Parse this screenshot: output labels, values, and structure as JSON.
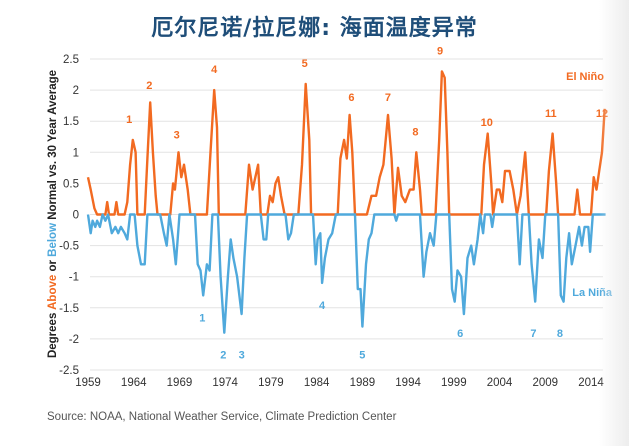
{
  "title": "厄尔尼诺/拉尼娜: 海面温度异常",
  "source": "Source: NOAA, National Weather Service, Climate Prediction Center",
  "colors": {
    "el_nino": "#f26a21",
    "la_nina": "#4fa9dc",
    "title": "#1f4e79",
    "grid": "#e3e3e3"
  },
  "chart_data": {
    "type": "line",
    "title": "厄尔尼诺/拉尼娜: 海面温度异常",
    "xlabel": "",
    "ylabel_parts": [
      {
        "text": "Degrees ",
        "color": "#222222"
      },
      {
        "text": "Above",
        "color": "#f26a21"
      },
      {
        "text": " or ",
        "color": "#222222"
      },
      {
        "text": "Below",
        "color": "#4fa9dc"
      },
      {
        "text": " Normal vs. 30 Year Average",
        "color": "#222222"
      }
    ],
    "xlim": [
      1959,
      2015.6
    ],
    "ylim": [
      -2.5,
      2.5
    ],
    "x_ticks": [
      "1959",
      "1964",
      "1969",
      "1974",
      "1979",
      "1984",
      "1989",
      "1994",
      "1999",
      "2004",
      "2009",
      "2014"
    ],
    "y_ticks": [
      "2.5",
      "2",
      "1.5",
      "1",
      "0.5",
      "0",
      "-0.5",
      "-1",
      "-1.5",
      "-2",
      "-2.5"
    ],
    "grid": true,
    "series": [
      {
        "name": "El Niño",
        "label_position": "top-right",
        "points": [
          [
            1959.0,
            0.6
          ],
          [
            1959.3,
            0.4
          ],
          [
            1959.7,
            0.1
          ],
          [
            1960.0,
            0.0
          ],
          [
            1960.9,
            0.0
          ],
          [
            1961.1,
            0.2
          ],
          [
            1961.3,
            0.0
          ],
          [
            1961.9,
            0.0
          ],
          [
            1962.1,
            0.2
          ],
          [
            1962.3,
            0.0
          ],
          [
            1963.0,
            0.0
          ],
          [
            1963.3,
            0.2
          ],
          [
            1963.6,
            0.8
          ],
          [
            1963.9,
            1.2
          ],
          [
            1964.2,
            1.0
          ],
          [
            1964.4,
            0.0
          ],
          [
            1965.2,
            0.0
          ],
          [
            1965.5,
            0.9
          ],
          [
            1965.8,
            1.8
          ],
          [
            1966.1,
            1.0
          ],
          [
            1966.4,
            0.3
          ],
          [
            1966.6,
            0.0
          ],
          [
            1968.0,
            0.0
          ],
          [
            1968.3,
            0.5
          ],
          [
            1968.5,
            0.4
          ],
          [
            1968.9,
            1.0
          ],
          [
            1969.2,
            0.6
          ],
          [
            1969.5,
            0.8
          ],
          [
            1969.9,
            0.4
          ],
          [
            1970.2,
            0.0
          ],
          [
            1972.0,
            0.0
          ],
          [
            1972.4,
            1.0
          ],
          [
            1972.8,
            2.0
          ],
          [
            1973.1,
            1.4
          ],
          [
            1973.3,
            0.0
          ],
          [
            1976.2,
            0.0
          ],
          [
            1976.6,
            0.8
          ],
          [
            1977.0,
            0.4
          ],
          [
            1977.6,
            0.8
          ],
          [
            1977.9,
            0.0
          ],
          [
            1978.6,
            0.0
          ],
          [
            1978.9,
            0.3
          ],
          [
            1979.2,
            0.2
          ],
          [
            1979.5,
            0.5
          ],
          [
            1979.8,
            0.6
          ],
          [
            1980.1,
            0.3
          ],
          [
            1980.5,
            0.0
          ],
          [
            1982.0,
            0.0
          ],
          [
            1982.4,
            0.8
          ],
          [
            1982.8,
            2.1
          ],
          [
            1983.2,
            1.2
          ],
          [
            1983.4,
            0.0
          ],
          [
            1986.3,
            0.0
          ],
          [
            1986.6,
            0.9
          ],
          [
            1987.0,
            1.2
          ],
          [
            1987.3,
            0.9
          ],
          [
            1987.6,
            1.6
          ],
          [
            1987.9,
            1.0
          ],
          [
            1988.2,
            0.0
          ],
          [
            1989.5,
            0.0
          ],
          [
            1990.0,
            0.3
          ],
          [
            1990.5,
            0.3
          ],
          [
            1990.9,
            0.6
          ],
          [
            1991.3,
            0.8
          ],
          [
            1991.8,
            1.6
          ],
          [
            1992.2,
            0.9
          ],
          [
            1992.5,
            0.0
          ],
          [
            1992.9,
            0.75
          ],
          [
            1993.3,
            0.3
          ],
          [
            1993.7,
            0.2
          ],
          [
            1994.2,
            0.4
          ],
          [
            1994.6,
            0.4
          ],
          [
            1994.9,
            1.0
          ],
          [
            1995.3,
            0.4
          ],
          [
            1995.5,
            0.0
          ],
          [
            1997.0,
            0.0
          ],
          [
            1997.4,
            1.2
          ],
          [
            1997.7,
            2.3
          ],
          [
            1998.0,
            2.2
          ],
          [
            1998.3,
            1.0
          ],
          [
            1998.5,
            0.0
          ],
          [
            2002.0,
            0.0
          ],
          [
            2002.3,
            0.8
          ],
          [
            2002.7,
            1.3
          ],
          [
            2003.1,
            0.5
          ],
          [
            2003.3,
            0.0
          ],
          [
            2003.7,
            0.4
          ],
          [
            2004.0,
            0.4
          ],
          [
            2004.3,
            0.2
          ],
          [
            2004.6,
            0.7
          ],
          [
            2005.1,
            0.7
          ],
          [
            2005.5,
            0.4
          ],
          [
            2005.9,
            0.0
          ],
          [
            2006.3,
            0.3
          ],
          [
            2006.8,
            1.0
          ],
          [
            2007.2,
            0.0
          ],
          [
            2009.1,
            0.0
          ],
          [
            2009.4,
            0.7
          ],
          [
            2009.8,
            1.3
          ],
          [
            2010.2,
            0.5
          ],
          [
            2010.4,
            0.0
          ],
          [
            2012.2,
            0.0
          ],
          [
            2012.5,
            0.4
          ],
          [
            2012.8,
            0.0
          ],
          [
            2014.0,
            0.0
          ],
          [
            2014.3,
            0.6
          ],
          [
            2014.6,
            0.4
          ],
          [
            2014.9,
            0.7
          ],
          [
            2015.2,
            1.0
          ],
          [
            2015.5,
            1.7
          ]
        ]
      },
      {
        "name": "La Niña",
        "label_position": "right",
        "points": [
          [
            1959.0,
            0.0
          ],
          [
            1959.3,
            -0.3
          ],
          [
            1959.5,
            -0.1
          ],
          [
            1959.8,
            -0.2
          ],
          [
            1960.0,
            -0.1
          ],
          [
            1960.3,
            -0.2
          ],
          [
            1960.6,
            0.0
          ],
          [
            1960.9,
            -0.1
          ],
          [
            1961.2,
            0.0
          ],
          [
            1961.6,
            -0.3
          ],
          [
            1962.0,
            -0.2
          ],
          [
            1962.3,
            -0.3
          ],
          [
            1962.6,
            -0.2
          ],
          [
            1963.0,
            -0.3
          ],
          [
            1963.3,
            -0.4
          ],
          [
            1963.6,
            0.0
          ],
          [
            1964.1,
            0.0
          ],
          [
            1964.4,
            -0.5
          ],
          [
            1964.8,
            -0.8
          ],
          [
            1965.2,
            -0.8
          ],
          [
            1965.5,
            0.0
          ],
          [
            1966.9,
            0.0
          ],
          [
            1967.3,
            -0.3
          ],
          [
            1967.6,
            -0.5
          ],
          [
            1967.9,
            0.0
          ],
          [
            1968.3,
            -0.4
          ],
          [
            1968.6,
            -0.8
          ],
          [
            1969.0,
            0.0
          ],
          [
            1970.7,
            0.0
          ],
          [
            1971.0,
            -0.8
          ],
          [
            1971.3,
            -0.9
          ],
          [
            1971.6,
            -1.3
          ],
          [
            1972.0,
            -0.8
          ],
          [
            1972.3,
            -0.9
          ],
          [
            1972.6,
            0.0
          ],
          [
            1973.2,
            0.0
          ],
          [
            1973.5,
            -1.0
          ],
          [
            1973.9,
            -1.9
          ],
          [
            1974.3,
            -1.0
          ],
          [
            1974.6,
            -0.4
          ],
          [
            1974.9,
            -0.7
          ],
          [
            1975.3,
            -1.0
          ],
          [
            1975.8,
            -1.6
          ],
          [
            1976.1,
            -0.7
          ],
          [
            1976.4,
            0.0
          ],
          [
            1977.9,
            0.0
          ],
          [
            1978.2,
            -0.4
          ],
          [
            1978.5,
            -0.4
          ],
          [
            1978.7,
            0.0
          ],
          [
            1980.6,
            0.0
          ],
          [
            1980.9,
            -0.4
          ],
          [
            1981.2,
            -0.3
          ],
          [
            1981.5,
            0.0
          ],
          [
            1983.6,
            0.0
          ],
          [
            1983.9,
            -0.8
          ],
          [
            1984.1,
            -0.4
          ],
          [
            1984.4,
            -0.3
          ],
          [
            1984.6,
            -1.1
          ],
          [
            1984.9,
            -0.7
          ],
          [
            1985.3,
            -0.4
          ],
          [
            1985.7,
            -0.3
          ],
          [
            1986.1,
            0.0
          ],
          [
            1988.2,
            0.0
          ],
          [
            1988.5,
            -1.2
          ],
          [
            1988.8,
            -1.2
          ],
          [
            1989.0,
            -1.8
          ],
          [
            1989.4,
            -0.8
          ],
          [
            1989.7,
            -0.4
          ],
          [
            1990.0,
            -0.3
          ],
          [
            1990.3,
            0.0
          ],
          [
            1992.5,
            0.0
          ],
          [
            1992.7,
            -0.1
          ],
          [
            1992.9,
            0.0
          ],
          [
            1995.3,
            0.0
          ],
          [
            1995.7,
            -1.0
          ],
          [
            1996.0,
            -0.6
          ],
          [
            1996.4,
            -0.3
          ],
          [
            1996.8,
            -0.5
          ],
          [
            1997.1,
            0.0
          ],
          [
            1998.5,
            0.0
          ],
          [
            1998.8,
            -1.2
          ],
          [
            1999.1,
            -1.4
          ],
          [
            1999.4,
            -0.9
          ],
          [
            1999.8,
            -1.0
          ],
          [
            2000.1,
            -1.6
          ],
          [
            2000.5,
            -0.7
          ],
          [
            2000.9,
            -0.5
          ],
          [
            2001.2,
            -0.8
          ],
          [
            2001.6,
            -0.4
          ],
          [
            2001.9,
            0.0
          ],
          [
            2002.2,
            -0.3
          ],
          [
            2002.4,
            0.0
          ],
          [
            2003.0,
            0.0
          ],
          [
            2003.2,
            -0.2
          ],
          [
            2003.4,
            0.0
          ],
          [
            2005.9,
            0.0
          ],
          [
            2006.2,
            -0.8
          ],
          [
            2006.5,
            0.0
          ],
          [
            2007.2,
            0.0
          ],
          [
            2007.5,
            -0.8
          ],
          [
            2007.9,
            -1.4
          ],
          [
            2008.3,
            -0.4
          ],
          [
            2008.7,
            -0.7
          ],
          [
            2009.0,
            0.0
          ],
          [
            2010.4,
            0.0
          ],
          [
            2010.7,
            -1.3
          ],
          [
            2011.0,
            -1.4
          ],
          [
            2011.3,
            -0.7
          ],
          [
            2011.6,
            -0.3
          ],
          [
            2011.9,
            -0.8
          ],
          [
            2012.3,
            -0.5
          ],
          [
            2012.7,
            -0.2
          ],
          [
            2013.0,
            -0.5
          ],
          [
            2013.3,
            -0.2
          ],
          [
            2013.7,
            -0.2
          ],
          [
            2013.9,
            -0.6
          ],
          [
            2014.2,
            0.0
          ],
          [
            2015.6,
            0.0
          ]
        ]
      }
    ],
    "annotations_el_nino": [
      {
        "text": "1",
        "x": 1963.5,
        "y": 1.15
      },
      {
        "text": "2",
        "x": 1965.7,
        "y": 1.7
      },
      {
        "text": "3",
        "x": 1968.7,
        "y": 0.9
      },
      {
        "text": "4",
        "x": 1972.8,
        "y": 1.95
      },
      {
        "text": "5",
        "x": 1982.7,
        "y": 2.05
      },
      {
        "text": "6",
        "x": 1987.8,
        "y": 1.5
      },
      {
        "text": "7",
        "x": 1991.8,
        "y": 1.5
      },
      {
        "text": "8",
        "x": 1994.8,
        "y": 0.95
      },
      {
        "text": "9",
        "x": 1997.5,
        "y": 2.25
      },
      {
        "text": "10",
        "x": 2002.6,
        "y": 1.1
      },
      {
        "text": "11",
        "x": 2009.6,
        "y": 1.25
      },
      {
        "text": "12",
        "x": 2015.2,
        "y": 1.25
      }
    ],
    "annotations_la_nina": [
      {
        "text": "1",
        "x": 1971.5,
        "y": -1.3
      },
      {
        "text": "2",
        "x": 1973.8,
        "y": -1.9
      },
      {
        "text": "3",
        "x": 1975.8,
        "y": -1.9
      },
      {
        "text": "4",
        "x": 1984.6,
        "y": -1.1
      },
      {
        "text": "5",
        "x": 1989.0,
        "y": -1.9
      },
      {
        "text": "6",
        "x": 1999.7,
        "y": -1.55
      },
      {
        "text": "7",
        "x": 2007.7,
        "y": -1.55
      },
      {
        "text": "8",
        "x": 2010.6,
        "y": -1.55
      }
    ],
    "legend": [
      {
        "name": "El Niño",
        "placement": "top-right"
      },
      {
        "name": "La Niña",
        "placement": "right"
      }
    ]
  }
}
